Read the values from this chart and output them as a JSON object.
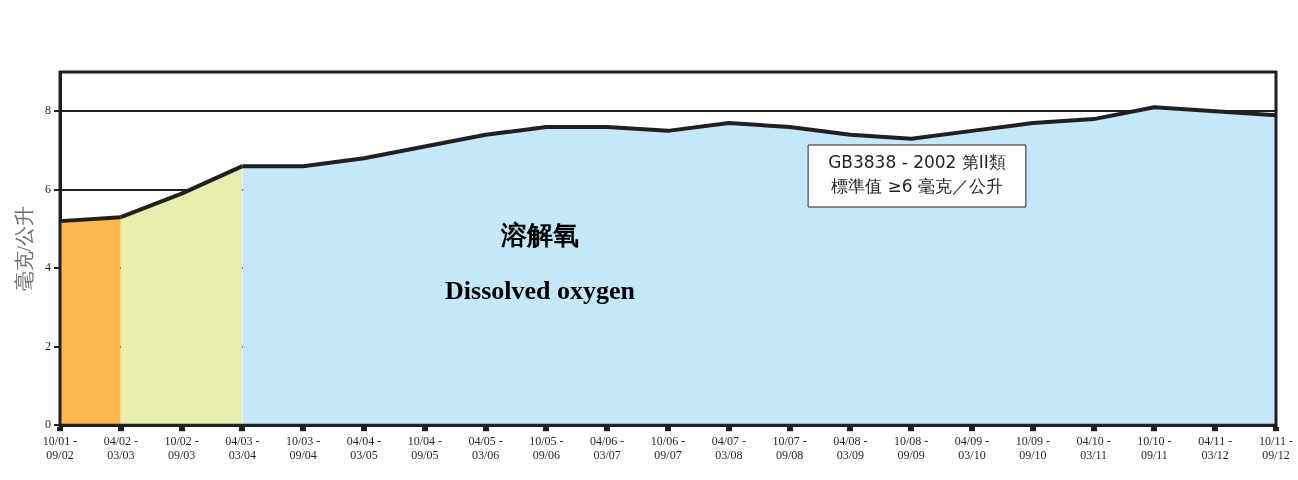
{
  "chart_data": {
    "type": "area",
    "title": "溶解氧",
    "subtitle": "Dissolved oxygen",
    "ylabel": "毫克/公升",
    "annotations": [
      "GB3838 - 2002 第II類",
      "標準值 ≥6 毫克／公升"
    ],
    "categories": [
      "10/01 - 09/02",
      "04/02 - 03/03",
      "10/02 - 09/03",
      "04/03 - 03/04",
      "10/03 - 09/04",
      "04/04 - 03/05",
      "10/04 - 09/05",
      "04/05 - 03/06",
      "10/05 - 09/06",
      "04/06 - 03/07",
      "10/06 - 09/07",
      "04/07 - 03/08",
      "10/07 - 09/08",
      "04/08 - 03/09",
      "10/08 - 09/09",
      "04/09 - 03/10",
      "10/09 - 09/10",
      "04/10 - 03/11",
      "10/10 - 09/11",
      "04/11 - 03/12",
      "10/11 - 09/12"
    ],
    "series": [
      {
        "color": "#fbb94d",
        "values": [
          5.2,
          5.3,
          null,
          null,
          null,
          null,
          null,
          null,
          null,
          null,
          null,
          null,
          null,
          null,
          null,
          null,
          null,
          null,
          null,
          null,
          null
        ]
      },
      {
        "color": "#e6edae",
        "values": [
          null,
          5.3,
          5.9,
          6.6,
          null,
          null,
          null,
          null,
          null,
          null,
          null,
          null,
          null,
          null,
          null,
          null,
          null,
          null,
          null,
          null,
          null
        ]
      },
      {
        "color": "#c5e8f8",
        "values": [
          null,
          null,
          null,
          6.6,
          6.6,
          6.8,
          7.1,
          7.4,
          7.6,
          7.6,
          7.5,
          7.7,
          7.6,
          7.4,
          7.3,
          7.5,
          7.7,
          7.8,
          8.1,
          8.0,
          7.9
        ]
      }
    ],
    "ylim": [
      0,
      9
    ],
    "yticks": [
      0,
      2,
      4,
      6,
      8
    ],
    "grid": "y",
    "legend": false
  }
}
